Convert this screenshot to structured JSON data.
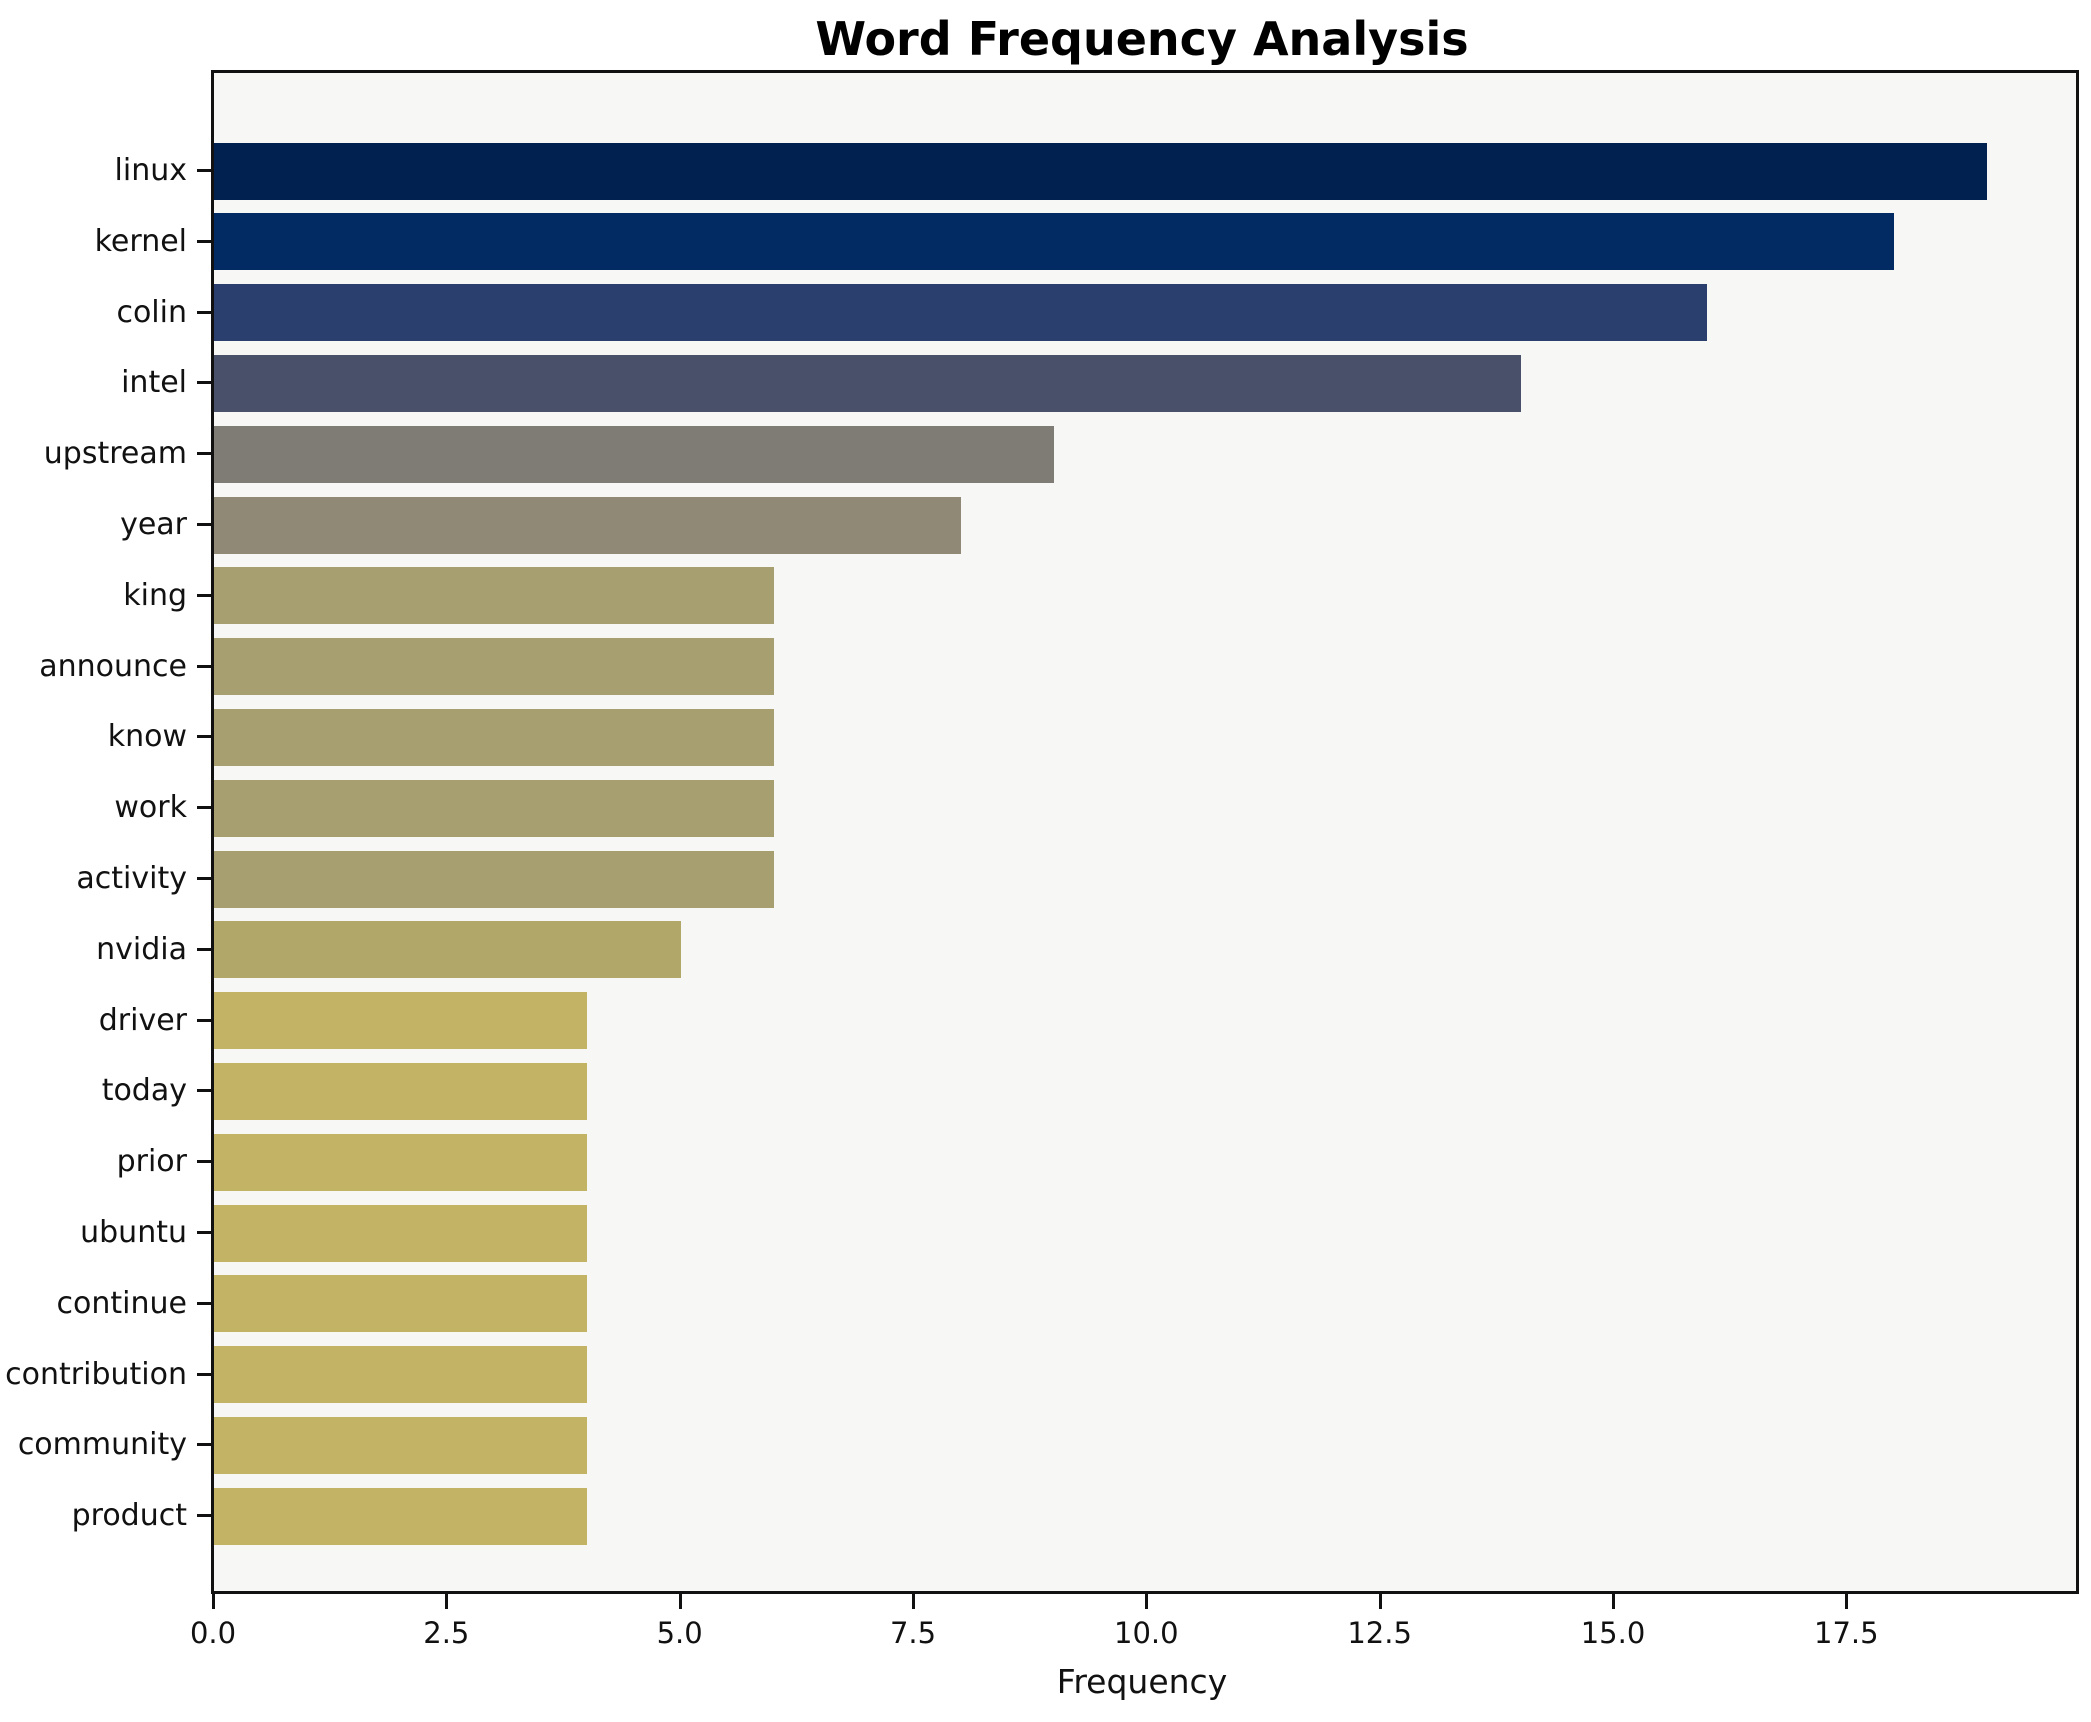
{
  "chart_data": {
    "type": "bar",
    "orientation": "horizontal",
    "title": "Word Frequency Analysis",
    "xlabel": "Frequency",
    "ylabel": "",
    "grid": false,
    "legend": null,
    "plot_background": "#f7f7f5",
    "axis_color": "#111111",
    "xlim": [
      0,
      19.95
    ],
    "x_ticks": [
      {
        "value": 0,
        "label": "0.0"
      },
      {
        "value": 2.5,
        "label": "2.5"
      },
      {
        "value": 5,
        "label": "5.0"
      },
      {
        "value": 7.5,
        "label": "7.5"
      },
      {
        "value": 10,
        "label": "10.0"
      },
      {
        "value": 12.5,
        "label": "12.5"
      },
      {
        "value": 15,
        "label": "15.0"
      },
      {
        "value": 17.5,
        "label": "17.5"
      }
    ],
    "categories": [
      "linux",
      "kernel",
      "colin",
      "intel",
      "upstream",
      "year",
      "king",
      "announce",
      "know",
      "work",
      "activity",
      "nvidia",
      "driver",
      "today",
      "prior",
      "ubuntu",
      "continue",
      "contribution",
      "community",
      "product"
    ],
    "values": [
      19,
      18,
      16,
      14,
      9,
      8,
      6,
      6,
      6,
      6,
      6,
      5,
      4,
      4,
      4,
      4,
      4,
      4,
      4,
      4
    ],
    "bar_colors": [
      "#012150",
      "#022b63",
      "#2b3f6f",
      "#485169",
      "#7f7c76",
      "#8f8976",
      "#a79f70",
      "#a79f70",
      "#a79f70",
      "#a79f70",
      "#a79f70",
      "#b1a769",
      "#c3b465",
      "#c3b465",
      "#c3b465",
      "#c3b465",
      "#c3b465",
      "#c3b465",
      "#c3b465",
      "#c3b465"
    ]
  }
}
